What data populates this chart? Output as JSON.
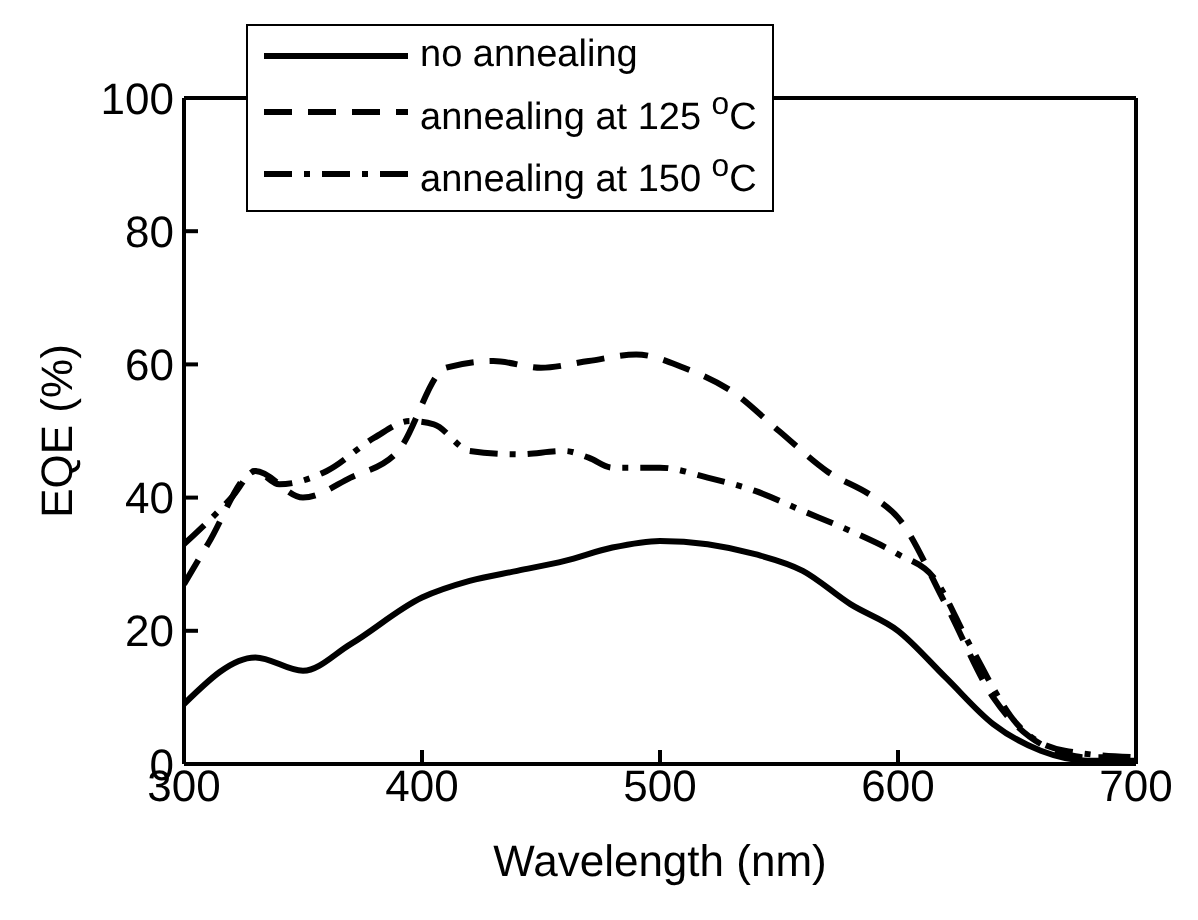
{
  "chart_data": {
    "type": "line",
    "xlabel": "Wavelength (nm)",
    "ylabel": "EQE (%)",
    "xlim": [
      300,
      700
    ],
    "xticks": [
      300,
      400,
      500,
      600,
      700
    ],
    "ylim": [
      0,
      100
    ],
    "yticks": [
      0,
      20,
      40,
      60,
      80,
      100
    ],
    "legend": "top",
    "marker": "none",
    "series": [
      {
        "name": "no annealing",
        "color": "#000000",
        "line_style": "solid",
        "x": [
          300,
          330,
          350,
          370,
          400,
          420,
          440,
          460,
          480,
          500,
          520,
          540,
          560,
          580,
          600,
          620,
          640,
          660,
          680,
          700
        ],
        "values": [
          9,
          16,
          14,
          18,
          25,
          27.5,
          29,
          30.5,
          32.5,
          33.5,
          33,
          31.5,
          29,
          24,
          20,
          13,
          6,
          2,
          0.5,
          0.5
        ]
      },
      {
        "name": "annealing at 125 $^{o}$C",
        "color": "#000000",
        "line_style": "dashed",
        "x": [
          300,
          310,
          330,
          350,
          370,
          390,
          410,
          430,
          450,
          470,
          490,
          510,
          530,
          550,
          570,
          590,
          600,
          620,
          640,
          660,
          680,
          700
        ],
        "values": [
          27,
          33,
          44,
          40,
          43,
          47,
          59.5,
          60.5,
          59.5,
          60.5,
          61.5,
          59.5,
          56,
          50,
          44,
          40,
          37,
          24,
          10,
          3,
          1,
          1
        ]
      },
      {
        "name": "annealing at 150 $^{o}$C",
        "color": "#000000",
        "line_style": "dashdot",
        "x": [
          300,
          320,
          330,
          340,
          360,
          380,
          395,
          405,
          420,
          440,
          460,
          470,
          480,
          500,
          520,
          540,
          560,
          580,
          600,
          615,
          630,
          650,
          670,
          700
        ],
        "values": [
          33,
          40,
          44,
          42,
          44,
          49,
          51.5,
          51,
          47,
          46.5,
          47,
          46,
          44.5,
          44.5,
          43,
          41,
          38,
          35,
          31.5,
          28,
          18,
          6,
          2,
          1
        ]
      }
    ]
  }
}
